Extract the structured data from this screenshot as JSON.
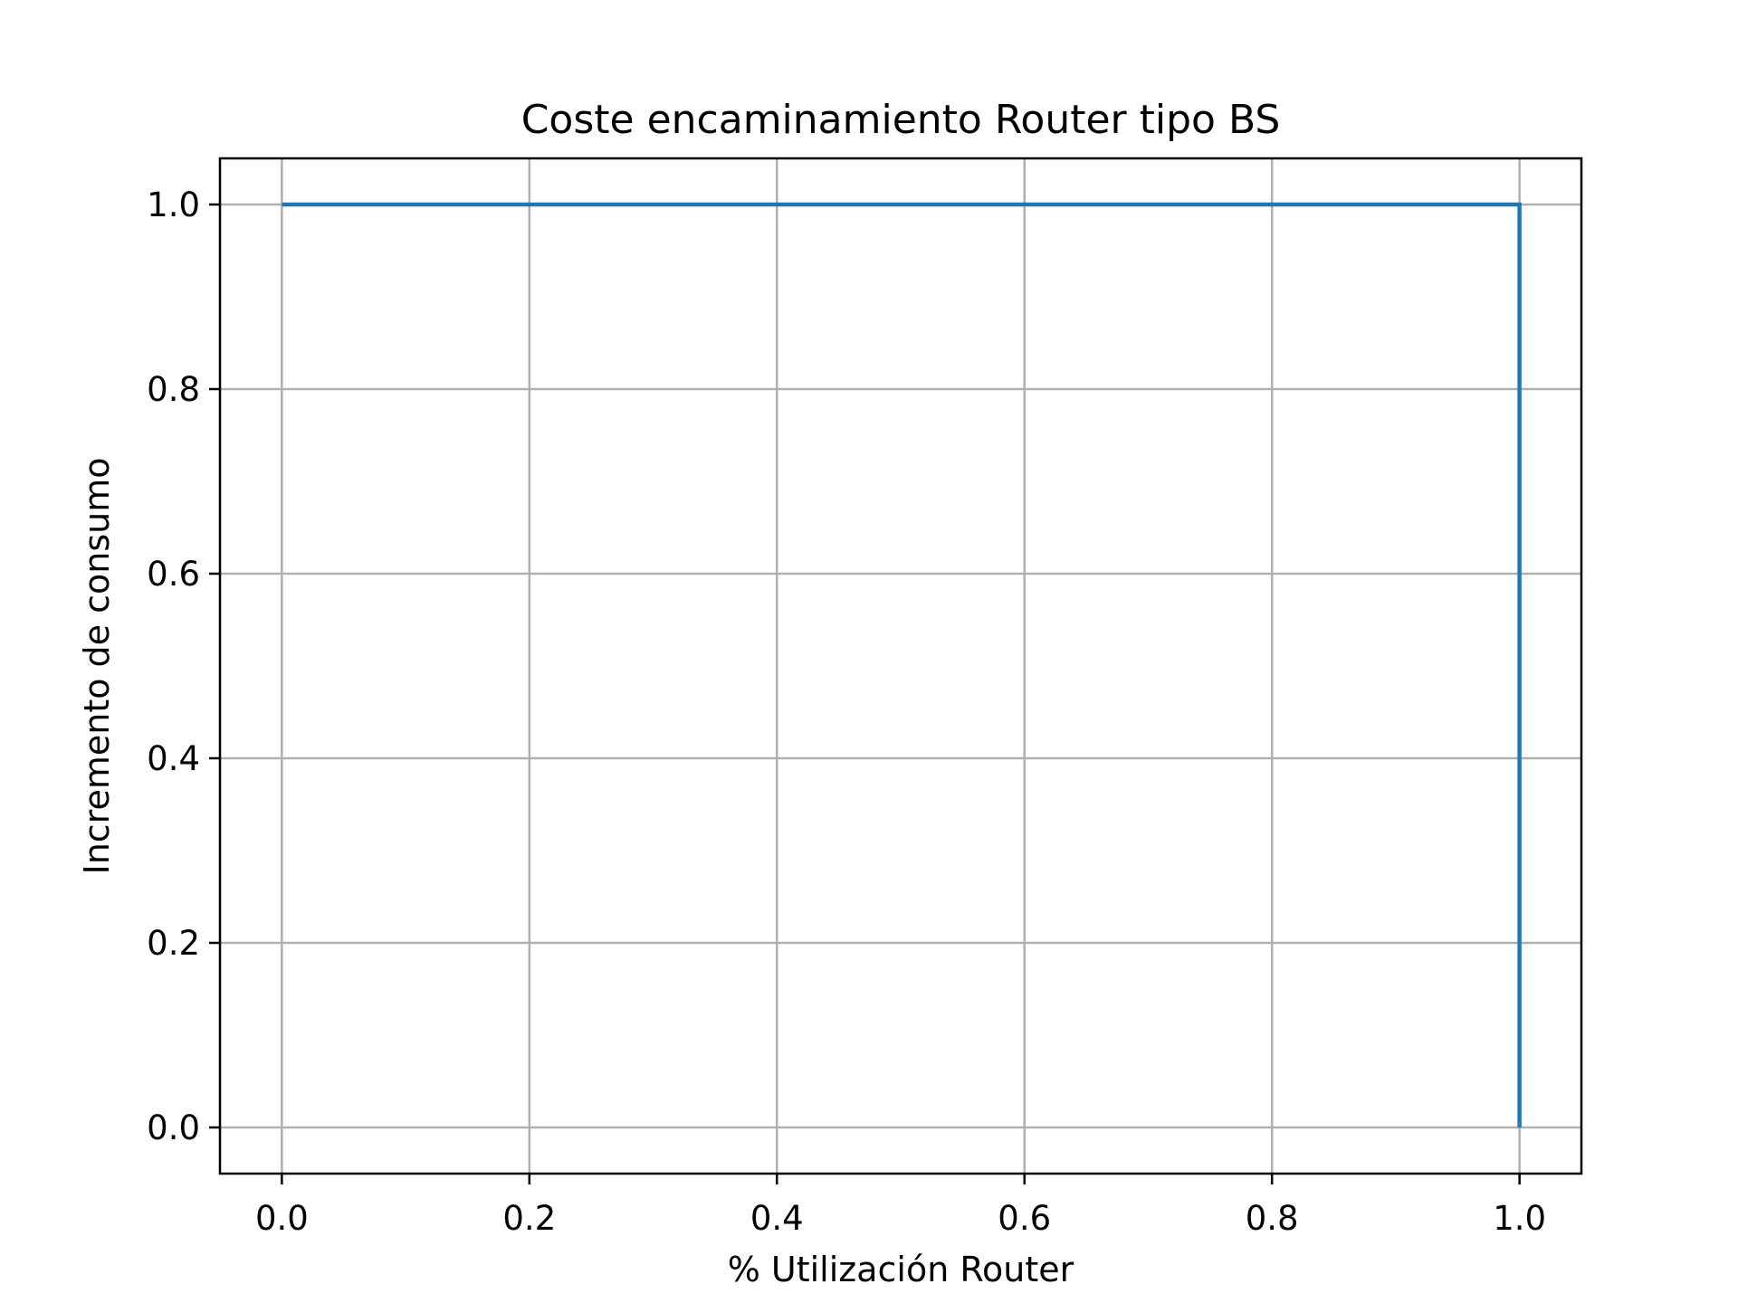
{
  "chart_data": {
    "type": "line",
    "title": "Coste encaminamiento Router tipo BS",
    "xlabel": "% Utilización Router",
    "ylabel": "Incremento de consumo",
    "xlim": [
      -0.05,
      1.05
    ],
    "ylim": [
      -0.05,
      1.05
    ],
    "xticks": [
      0.0,
      0.2,
      0.4,
      0.6,
      0.8,
      1.0
    ],
    "yticks": [
      0.0,
      0.2,
      0.4,
      0.6,
      0.8,
      1.0
    ],
    "xtick_labels": [
      "0.0",
      "0.2",
      "0.4",
      "0.6",
      "0.8",
      "1.0"
    ],
    "ytick_labels": [
      "0.0",
      "0.2",
      "0.4",
      "0.6",
      "0.8",
      "1.0"
    ],
    "grid": true,
    "series": [
      {
        "color": "#1f77b4",
        "x": [
          0.0,
          1.0,
          1.0
        ],
        "y": [
          1.0,
          1.0,
          0.0
        ]
      }
    ]
  }
}
